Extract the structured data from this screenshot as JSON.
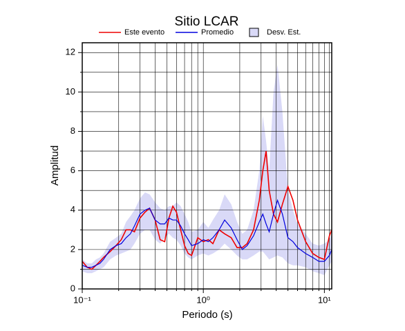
{
  "chart_data": {
    "type": "line",
    "title": "Sitio LCAR",
    "xlabel": "Periodo (s)",
    "ylabel": "Amplitud",
    "xscale": "log",
    "grid": true,
    "xlim": [
      0.1,
      11.5
    ],
    "ylim": [
      0,
      12.5
    ],
    "xticks": [
      {
        "value": 0.1,
        "label": "10⁻¹"
      },
      {
        "value": 1,
        "label": "10⁰"
      },
      {
        "value": 10,
        "label": "10¹"
      }
    ],
    "xminor_ticks": [
      0.2,
      0.3,
      0.4,
      0.5,
      0.6,
      0.7,
      0.8,
      0.9,
      2,
      3,
      4,
      5,
      6,
      7,
      8,
      9,
      11
    ],
    "yticks": [
      0,
      2,
      4,
      6,
      8,
      10,
      12
    ],
    "yminor_ticks": [
      1,
      3,
      5,
      7,
      9,
      11
    ],
    "x": [
      0.1,
      0.11,
      0.12,
      0.13,
      0.14,
      0.15,
      0.17,
      0.19,
      0.21,
      0.23,
      0.25,
      0.27,
      0.3,
      0.33,
      0.36,
      0.4,
      0.44,
      0.48,
      0.52,
      0.56,
      0.6,
      0.65,
      0.7,
      0.75,
      0.8,
      0.9,
      1.0,
      1.1,
      1.2,
      1.35,
      1.5,
      1.7,
      1.9,
      2.1,
      2.3,
      2.6,
      2.9,
      3.1,
      3.3,
      3.5,
      3.8,
      4.1,
      4.5,
      5.0,
      5.5,
      6,
      7,
      8,
      9,
      10,
      11,
      11.5
    ],
    "band": {
      "name": "Desv. Est.",
      "color": "#d9d9f7",
      "lower": [
        0.9,
        0.8,
        0.8,
        0.9,
        1.0,
        1.1,
        1.5,
        1.7,
        1.8,
        1.9,
        2.0,
        2.3,
        2.8,
        3.0,
        3.0,
        2.5,
        2.3,
        2.6,
        2.8,
        2.6,
        2.5,
        2.2,
        1.8,
        1.6,
        1.5,
        1.7,
        1.8,
        1.7,
        1.8,
        2.0,
        2.3,
        2.0,
        1.7,
        1.5,
        1.5,
        1.7,
        1.9,
        1.9,
        1.7,
        1.5,
        1.6,
        1.7,
        1.6,
        1.3,
        1.2,
        1.2,
        1.1,
        0.9,
        0.8,
        0.7,
        1.2,
        1.4
      ],
      "upper": [
        1.5,
        1.3,
        1.3,
        1.5,
        1.6,
        1.8,
        2.4,
        2.6,
        2.8,
        3.4,
        3.7,
        4.0,
        4.6,
        4.9,
        4.8,
        4.4,
        4.1,
        4.0,
        4.2,
        4.2,
        4.4,
        4.2,
        3.8,
        3.4,
        2.9,
        3.0,
        3.4,
        3.1,
        3.5,
        4.0,
        4.8,
        4.3,
        3.4,
        2.8,
        3.0,
        4.0,
        6.0,
        8.8,
        7.5,
        6.0,
        10.0,
        11.4,
        9.0,
        5.0,
        4.0,
        3.3,
        2.8,
        2.3,
        2.2,
        2.3,
        2.5,
        2.8
      ]
    },
    "series": [
      {
        "name": "Este evento",
        "color": "#ee0000",
        "values": [
          1.4,
          1.1,
          1.0,
          1.2,
          1.4,
          1.6,
          1.9,
          2.2,
          2.5,
          3.0,
          3.0,
          2.9,
          3.6,
          3.9,
          4.1,
          3.5,
          2.5,
          2.4,
          3.6,
          4.2,
          3.9,
          3.0,
          2.2,
          1.8,
          1.7,
          2.6,
          2.4,
          2.5,
          2.3,
          3.0,
          2.8,
          2.6,
          2.1,
          2.1,
          2.3,
          3.0,
          4.5,
          6.0,
          7.0,
          5.0,
          3.8,
          3.4,
          4.3,
          5.2,
          4.5,
          3.5,
          2.4,
          1.8,
          1.6,
          1.5,
          2.7,
          3.0
        ]
      },
      {
        "name": "Promedio",
        "color": "#0000dd",
        "values": [
          1.2,
          1.1,
          1.1,
          1.2,
          1.3,
          1.5,
          2.0,
          2.2,
          2.3,
          2.6,
          2.8,
          3.2,
          3.8,
          4.0,
          4.1,
          3.5,
          3.3,
          3.3,
          3.6,
          3.5,
          3.5,
          3.2,
          2.8,
          2.5,
          2.2,
          2.3,
          2.5,
          2.4,
          2.6,
          3.0,
          3.5,
          3.1,
          2.5,
          2.0,
          2.2,
          2.7,
          3.4,
          3.8,
          3.3,
          2.9,
          3.8,
          4.5,
          3.8,
          2.6,
          2.4,
          2.1,
          1.8,
          1.6,
          1.4,
          1.4,
          1.7,
          2.0
        ]
      }
    ]
  }
}
